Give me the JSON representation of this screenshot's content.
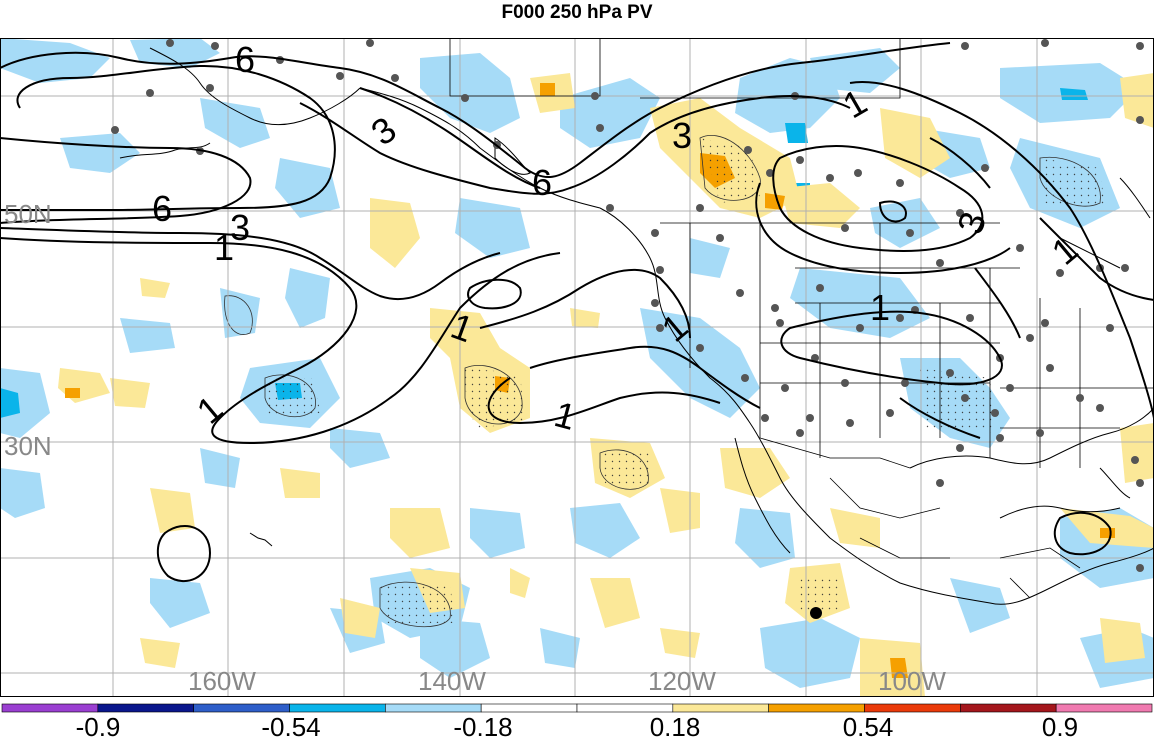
{
  "title": "F000 250 hPa PV",
  "lat_labels": [
    "50N",
    "30N"
  ],
  "lon_labels": [
    "160W",
    "140W",
    "120W",
    "100W"
  ],
  "contour_labels": [
    "6",
    "6",
    "6",
    "3",
    "3",
    "3",
    "1",
    "1",
    "1",
    "1",
    "1",
    "1",
    "1",
    "3",
    "1"
  ],
  "colorbar": {
    "colors": [
      "#9a3fd1",
      "#0a168c",
      "#2e5ec9",
      "#0ab4ea",
      "#a6dbf7",
      "#ffffff",
      "#ffffff",
      "#fbe898",
      "#f5a000",
      "#ea3a0a",
      "#a4161c",
      "#f07ab0"
    ],
    "tick_labels": [
      "-0.9",
      "-0.54",
      "-0.18",
      "0.18",
      "0.54",
      "0.9"
    ]
  },
  "colors": {
    "neg_light": "#a6dbf7",
    "neg_mid": "#0ab4ea",
    "pos_light": "#fbe898",
    "pos_mid": "#f5a000",
    "grid": "#b0b0b0",
    "label_gray": "#888888",
    "station": "#555555"
  }
}
